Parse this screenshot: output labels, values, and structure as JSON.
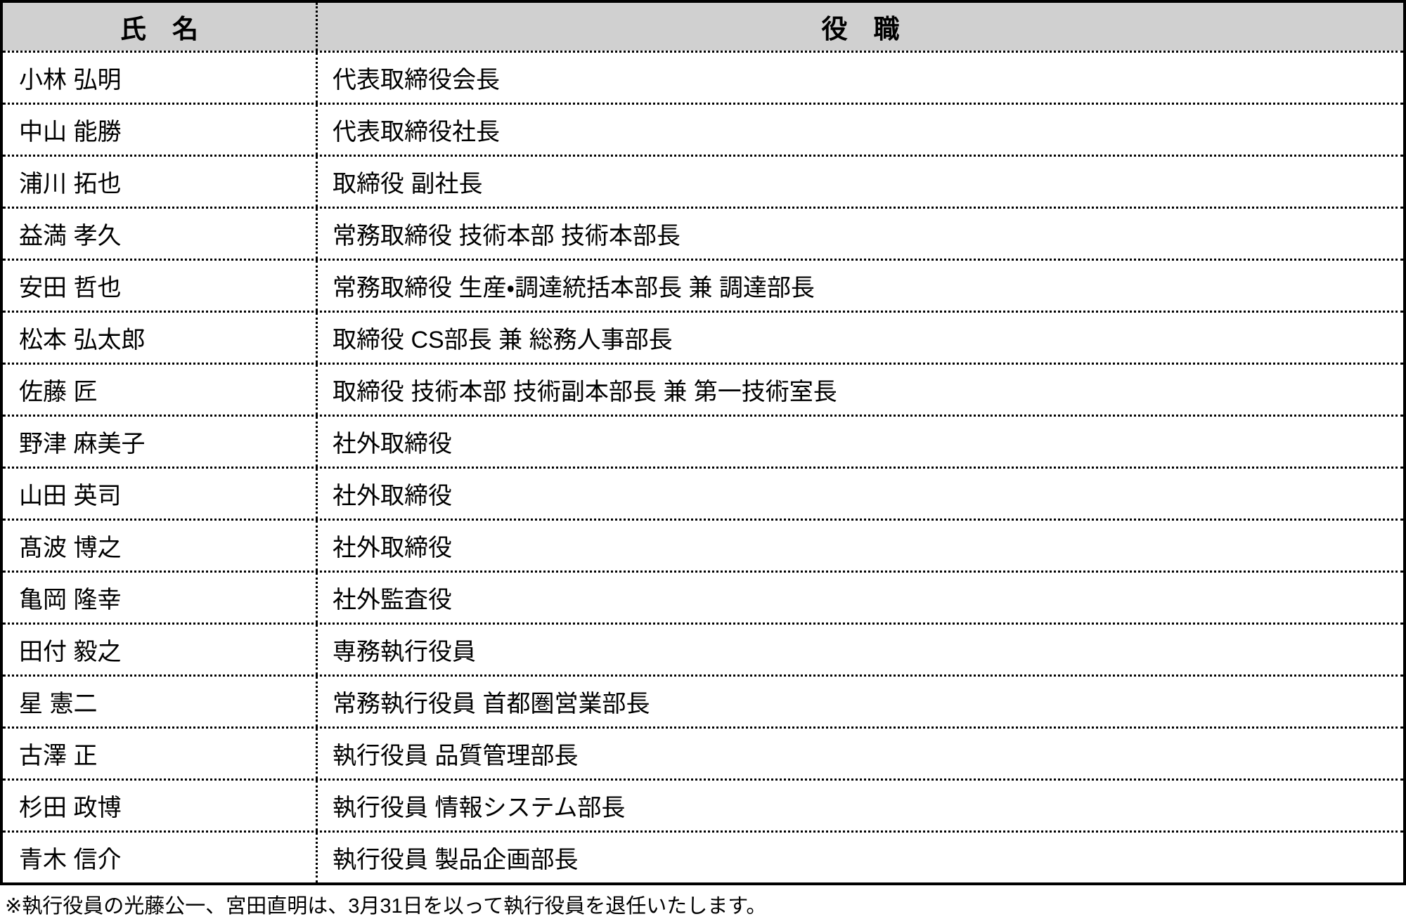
{
  "table": {
    "headers": {
      "name": "氏　名",
      "role": "役　職"
    },
    "rows": [
      {
        "name": "小林 弘明",
        "role": "代表取締役会長"
      },
      {
        "name": "中山 能勝",
        "role": "代表取締役社長"
      },
      {
        "name": "浦川 拓也",
        "role": "取締役 副社長"
      },
      {
        "name": "益満 孝久",
        "role": "常務取締役 技術本部 技術本部長"
      },
      {
        "name": "安田 哲也",
        "role": "常務取締役 生産・調達統括本部長 兼 調達部長"
      },
      {
        "name": "松本 弘太郎",
        "role": "取締役 CS部長 兼 総務人事部長"
      },
      {
        "name": "佐藤 匠",
        "role": "取締役 技術本部 技術副本部長 兼 第一技術室長"
      },
      {
        "name": "野津 麻美子",
        "role": "社外取締役"
      },
      {
        "name": "山田 英司",
        "role": "社外取締役"
      },
      {
        "name": "髙波 博之",
        "role": "社外取締役"
      },
      {
        "name": "亀岡 隆幸",
        "role": "社外監査役"
      },
      {
        "name": "田付 毅之",
        "role": "専務執行役員"
      },
      {
        "name": "星 憲二",
        "role": "常務執行役員 首都圏営業部長"
      },
      {
        "name": "古澤 正",
        "role": "執行役員 品質管理部長"
      },
      {
        "name": "杉田 政博",
        "role": "執行役員 情報システム部長"
      },
      {
        "name": "青木 信介",
        "role": "執行役員 製品企画部長"
      }
    ]
  },
  "footnote": "※執行役員の光藤公一、宮田直明は、3月31日を以って執行役員を退任いたします。",
  "colors": {
    "header_bg": "#d0d0d0",
    "border": "#000000",
    "text": "#000000",
    "row_bg": "#ffffff"
  }
}
